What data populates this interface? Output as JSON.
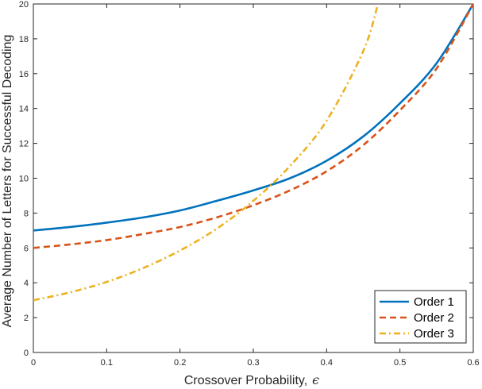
{
  "chart_data": {
    "type": "line",
    "xlabel": "Crossover Probability,",
    "xlabel_symbol": "ϵ",
    "ylabel": "Average Number of Letters for Successful Decoding",
    "xlim": [
      0,
      0.6
    ],
    "ylim": [
      0,
      20
    ],
    "xticks": [
      "0",
      "0.1",
      "0.2",
      "0.3",
      "0.4",
      "0.5",
      "0.6"
    ],
    "yticks": [
      "0",
      "2",
      "4",
      "6",
      "8",
      "10",
      "12",
      "14",
      "16",
      "18",
      "20"
    ],
    "grid": false,
    "legend_position": "bottom-right",
    "x": [
      0,
      0.05,
      0.1,
      0.15,
      0.2,
      0.25,
      0.3,
      0.35,
      0.4,
      0.45,
      0.5,
      0.55,
      0.6
    ],
    "series": [
      {
        "name": "Order 1",
        "color": "#0072BD",
        "dash": "solid",
        "values": [
          7.0,
          7.2,
          7.45,
          7.75,
          8.15,
          8.7,
          9.3,
          10.0,
          11.0,
          12.4,
          14.3,
          16.6,
          20.0
        ]
      },
      {
        "name": "Order 2",
        "color": "#D95319",
        "dash": "dashed",
        "values": [
          6.0,
          6.2,
          6.45,
          6.8,
          7.2,
          7.75,
          8.45,
          9.3,
          10.4,
          11.9,
          13.9,
          16.3,
          20.0
        ]
      },
      {
        "name": "Order 3",
        "color": "#EDB120",
        "dash": "dashdot",
        "x": [
          0,
          0.05,
          0.1,
          0.15,
          0.2,
          0.25,
          0.3,
          0.35,
          0.4,
          0.45,
          0.47
        ],
        "values": [
          3.0,
          3.45,
          4.05,
          4.85,
          5.85,
          7.1,
          8.7,
          10.7,
          13.3,
          17.3,
          20.0
        ]
      }
    ]
  }
}
